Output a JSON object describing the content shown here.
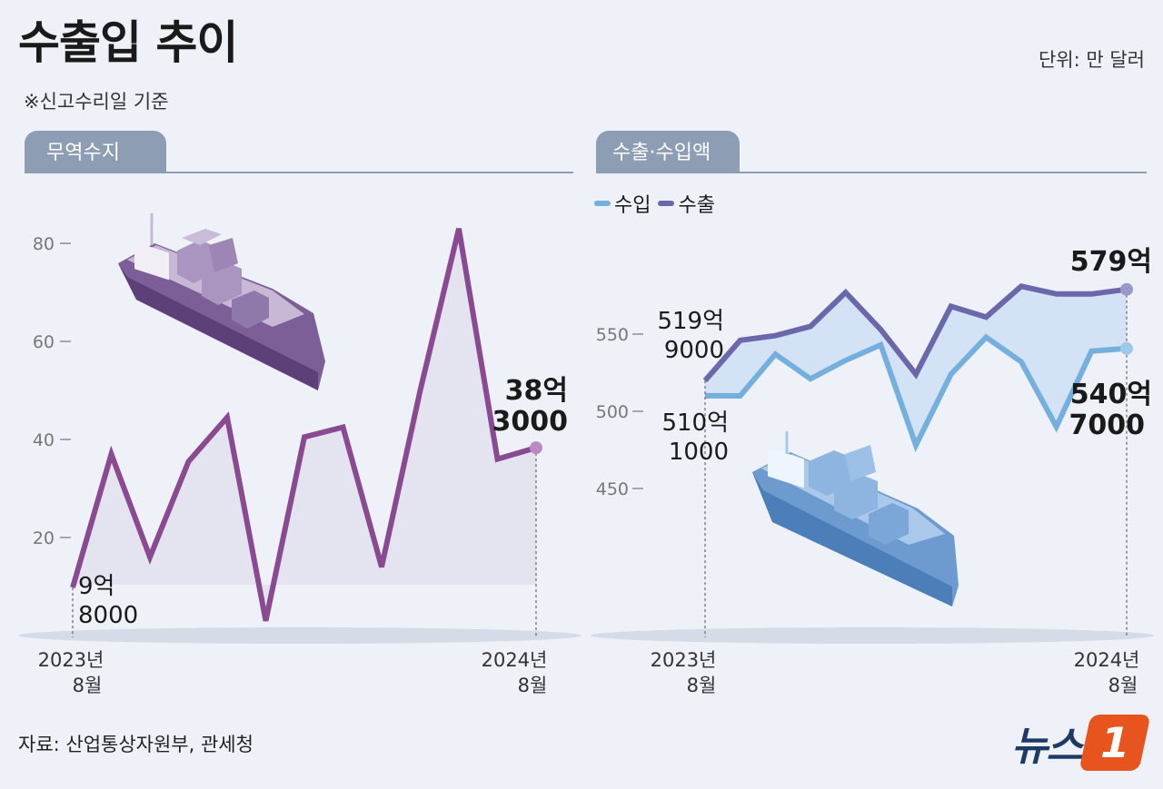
{
  "header": {
    "title": "수출입 추이",
    "note": "※신고수리일 기준",
    "unit": "단위: 만 달러"
  },
  "footer": {
    "source": "자료: 산업통상자원부, 관세청",
    "logo_text": "뉴스",
    "logo_mark": "1"
  },
  "colors": {
    "balance_line": "#8a4a92",
    "export_line": "#6a67aa",
    "import_line": "#74afde",
    "tab": "#8c9db4",
    "band_fill": "#cfe0f3"
  },
  "icons": [
    "cargo-ship-icon-purple",
    "cargo-ship-icon-blue"
  ],
  "chart_data": [
    {
      "type": "area",
      "tab_label": "무역수지",
      "x": [
        "2023-08",
        "2023-09",
        "2023-10",
        "2023-11",
        "2023-12",
        "2024-01",
        "2024-02",
        "2024-03",
        "2024-04",
        "2024-05",
        "2024-06",
        "2024-07",
        "2024-08"
      ],
      "x_tick_labels": [
        {
          "line1": "2023년",
          "line2": "8월"
        },
        {
          "line1": "2024년",
          "line2": "8월"
        }
      ],
      "series": [
        {
          "values": [
            9.8,
            37,
            16,
            35.5,
            44.5,
            3,
            40.5,
            42.5,
            14,
            50,
            83,
            36,
            38.3
          ]
        }
      ],
      "yticks": [
        "20",
        "40",
        "60",
        "80"
      ],
      "ytick_values": [
        20,
        40,
        60,
        80
      ],
      "ylim": [
        0,
        90
      ],
      "annotations": {
        "first": {
          "line1": "9억",
          "line2": "8000"
        },
        "last": {
          "line1": "38억",
          "line2": "3000"
        }
      }
    },
    {
      "type": "line",
      "tab_label": "수출·수입액",
      "x": [
        "2023-08",
        "2023-09",
        "2023-10",
        "2023-11",
        "2023-12",
        "2024-01",
        "2024-02",
        "2024-03",
        "2024-04",
        "2024-05",
        "2024-06",
        "2024-07",
        "2024-08"
      ],
      "x_tick_labels": [
        {
          "line1": "2023년",
          "line2": "8월"
        },
        {
          "line1": "2024년",
          "line2": "8월"
        }
      ],
      "legend": [
        "수입",
        "수출"
      ],
      "series": [
        {
          "name": "수입",
          "values": [
            510.1,
            510,
            537,
            521,
            533,
            543,
            478,
            524,
            548,
            532,
            490,
            539,
            540.7
          ]
        },
        {
          "name": "수출",
          "values": [
            519.9,
            546,
            549,
            555,
            577,
            553,
            524,
            568,
            561,
            581,
            576,
            576,
            579
          ]
        }
      ],
      "yticks": [
        "450",
        "500",
        "550"
      ],
      "ytick_values": [
        450,
        500,
        550
      ],
      "ylim": [
        400,
        600
      ],
      "annotations": {
        "export_first": {
          "line1": "519억",
          "line2": "9000"
        },
        "import_first": {
          "line1": "510억",
          "line2": "1000"
        },
        "export_last": {
          "line1": "579억"
        },
        "import_last": {
          "line1": "540억",
          "line2": "7000"
        }
      }
    }
  ]
}
